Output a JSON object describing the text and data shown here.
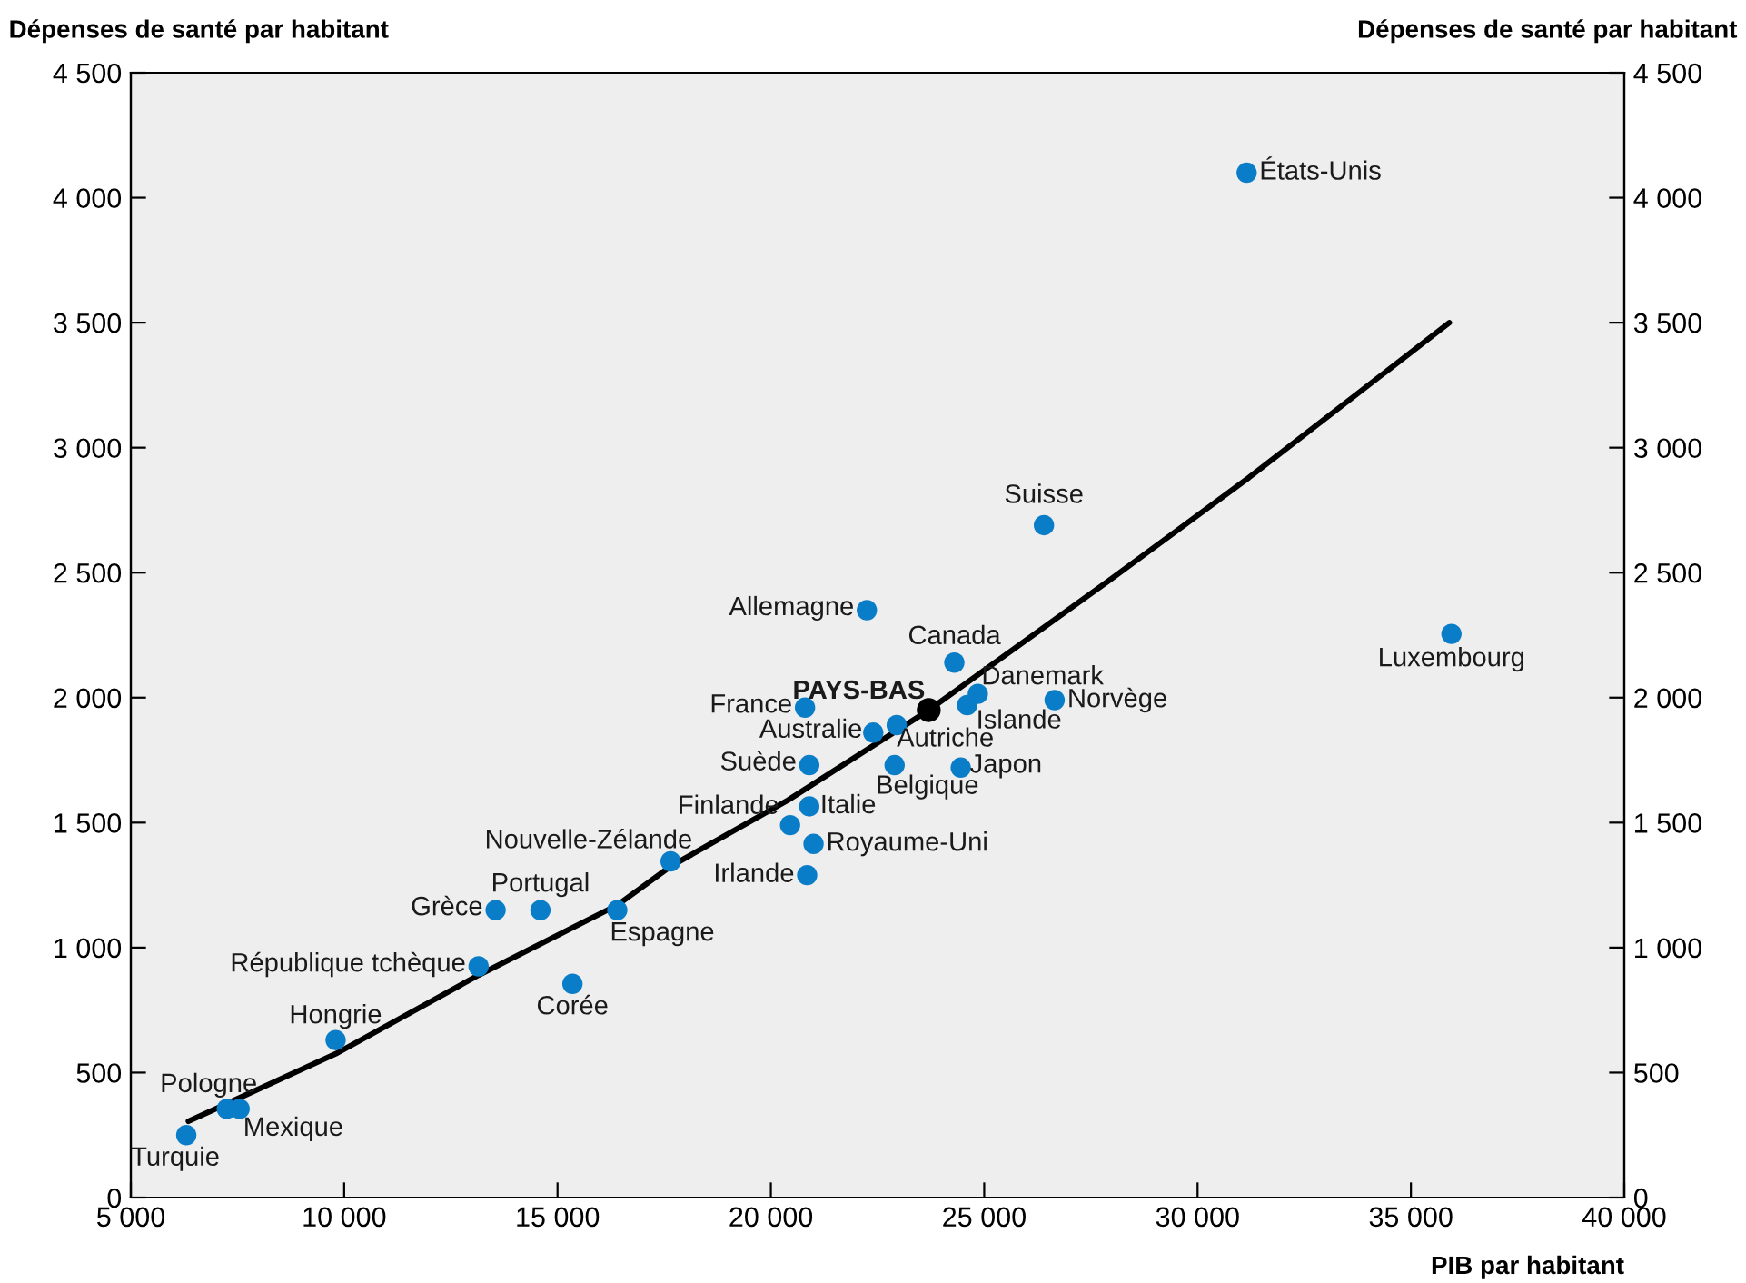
{
  "chart_data": {
    "type": "scatter",
    "ylabel": "Dépenses de santé par habitant",
    "y2label": "Dépenses de santé par habitant",
    "xlabel": "PIB par habitant",
    "xlim": [
      5000,
      40000
    ],
    "xticks": [
      {
        "value": 5000,
        "label": "5 000"
      },
      {
        "value": 10000,
        "label": "10 000"
      },
      {
        "value": 15000,
        "label": "15 000"
      },
      {
        "value": 20000,
        "label": "20 000"
      },
      {
        "value": 25000,
        "label": "25 000"
      },
      {
        "value": 30000,
        "label": "30 000"
      },
      {
        "value": 35000,
        "label": "35 000"
      },
      {
        "value": 40000,
        "label": "40 000"
      }
    ],
    "ylim": [
      0,
      4500
    ],
    "yticks": [
      0,
      500,
      {
        "value": 1000,
        "label": "1 000"
      },
      {
        "value": 1500,
        "label": "1 500"
      },
      {
        "value": 2000,
        "label": "2 000"
      },
      {
        "value": 2500,
        "label": "2 500"
      },
      {
        "value": 3000,
        "label": "3 000"
      },
      {
        "value": 3500,
        "label": "3 500"
      },
      {
        "value": 4000,
        "label": "4 000"
      },
      {
        "value": 4500,
        "label": "4 500"
      }
    ],
    "y2lim": [
      0,
      4500
    ],
    "y2ticks": [
      0,
      500,
      {
        "value": 1000,
        "label": "1 000"
      },
      {
        "value": 1500,
        "label": "1 500"
      },
      {
        "value": 2000,
        "label": "2 000"
      },
      {
        "value": 2500,
        "label": "2 500"
      },
      {
        "value": 3000,
        "label": "3 000"
      },
      {
        "value": 3500,
        "label": "3 500"
      },
      {
        "value": 4000,
        "label": "4 000"
      },
      {
        "value": 4500,
        "label": "4 500"
      }
    ],
    "grid": false,
    "legend": false,
    "marker": "circle",
    "series": [
      {
        "color": "#0a7dc8",
        "x": [
          6300,
          7250,
          7550,
          9800,
          13150,
          13550,
          14600,
          15350,
          16400,
          17650,
          20450,
          20900,
          21000,
          20850,
          20900,
          20800,
          22400,
          22950,
          22900,
          22250,
          24300,
          24600,
          24850,
          24450,
          26650,
          26400,
          31150,
          35950
        ],
        "values": [
          250,
          355,
          355,
          630,
          925,
          1150,
          1150,
          855,
          1150,
          1345,
          1490,
          1565,
          1415,
          1290,
          1730,
          1960,
          1860,
          1890,
          1730,
          2350,
          2140,
          1970,
          2015,
          1720,
          1990,
          2690,
          4100,
          2255
        ],
        "value_labels": [
          "Turquie",
          "Pologne",
          "Mexique",
          "Hongrie",
          "République tchèque",
          "Grèce",
          "Portugal",
          "Corée",
          "Espagne",
          "Nouvelle-Zélande",
          "Finlande",
          "Italie",
          "Royaume-Uni",
          "Irlande",
          "Suède",
          "France",
          "Australie",
          "Autriche",
          "Belgique",
          "Allemagne",
          "Canada",
          "Islande",
          "Danemark",
          "Japon",
          "Norvège",
          "Suisse",
          "États-Unis",
          "Luxembourg"
        ]
      },
      {
        "color": "#000000",
        "x": [
          23700
        ],
        "values": [
          1950
        ],
        "value_labels": [
          "PAYS-BAS"
        ]
      },
      {
        "type": "line",
        "color": "#000000",
        "marker": "none",
        "x": [
          6350,
          9800,
          13150,
          16400,
          17650,
          20400,
          23700,
          27900,
          31200,
          35900
        ],
        "values": [
          305,
          575,
          890,
          1170,
          1325,
          1590,
          1950,
          2465,
          2880,
          3500
        ]
      }
    ]
  }
}
